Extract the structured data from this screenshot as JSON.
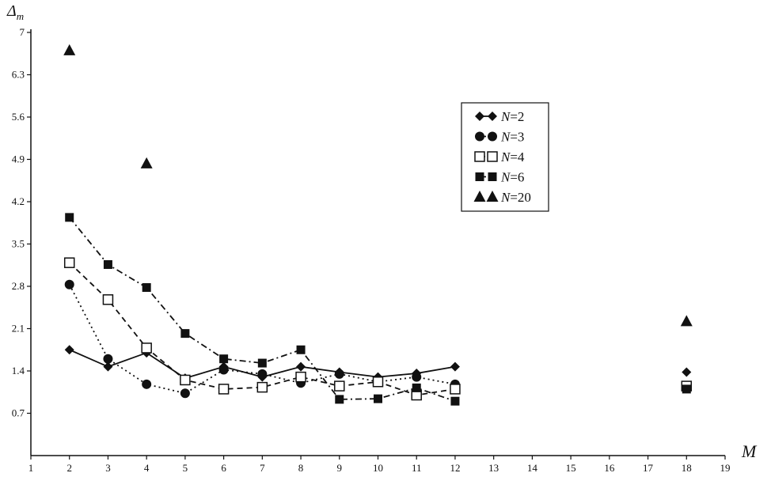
{
  "chart_data": {
    "type": "scatter",
    "xlabel": "M",
    "ylabel_main": "Δ",
    "ylabel_sub": "m",
    "x_ticks": [
      1,
      2,
      3,
      4,
      5,
      6,
      7,
      8,
      9,
      10,
      11,
      12,
      13,
      14,
      15,
      16,
      17,
      18,
      19
    ],
    "y_ticks": [
      "0.7",
      "1.4",
      "2.1",
      "2.8",
      "3.5",
      "4.2",
      "4.9",
      "5.6",
      "6.3",
      "7"
    ],
    "xlim": [
      1,
      19
    ],
    "ylim": [
      0,
      7
    ],
    "grid": false,
    "legend_position": "top-right",
    "series": [
      {
        "name_prefix": "N",
        "name_suffix": "=2",
        "marker": "diamond",
        "line": "solid",
        "x": [
          2,
          3,
          4,
          5,
          6,
          7,
          8,
          9,
          10,
          11,
          12
        ],
        "y": [
          1.75,
          1.47,
          1.7,
          1.28,
          1.47,
          1.3,
          1.47,
          1.38,
          1.3,
          1.36,
          1.47
        ],
        "extra_x": [
          18
        ],
        "extra_y": [
          1.38
        ]
      },
      {
        "name_prefix": "N",
        "name_suffix": "=3",
        "marker": "circle",
        "line": "dotted",
        "x": [
          2,
          3,
          4,
          5,
          6,
          7,
          8,
          9,
          10,
          11,
          12
        ],
        "y": [
          2.83,
          1.6,
          1.18,
          1.03,
          1.42,
          1.35,
          1.2,
          1.35,
          1.22,
          1.3,
          1.18
        ],
        "extra_x": [
          18
        ],
        "extra_y": [
          1.15
        ]
      },
      {
        "name_prefix": "N",
        "name_suffix": "=4",
        "marker": "square-open",
        "line": "dashed",
        "x": [
          2,
          3,
          4,
          5,
          6,
          7,
          8,
          9,
          10,
          11,
          12
        ],
        "y": [
          3.19,
          2.58,
          1.78,
          1.25,
          1.1,
          1.13,
          1.3,
          1.15,
          1.22,
          1.0,
          1.1
        ],
        "extra_x": [
          18
        ],
        "extra_y": [
          1.15
        ]
      },
      {
        "name_prefix": "N",
        "name_suffix": "=6",
        "marker": "square-filled",
        "line": "dashdot",
        "x": [
          2,
          3,
          4,
          5,
          6,
          7,
          8,
          9,
          10,
          11,
          12
        ],
        "y": [
          3.94,
          3.16,
          2.78,
          2.02,
          1.6,
          1.53,
          1.75,
          0.93,
          0.94,
          1.12,
          0.9
        ],
        "extra_x": [
          18
        ],
        "extra_y": [
          1.1
        ]
      },
      {
        "name_prefix": "N",
        "name_suffix": "=20",
        "marker": "triangle",
        "line": "none",
        "x": [
          2,
          4,
          18
        ],
        "y": [
          6.7,
          4.83,
          2.22
        ],
        "extra_x": [],
        "extra_y": []
      }
    ]
  }
}
